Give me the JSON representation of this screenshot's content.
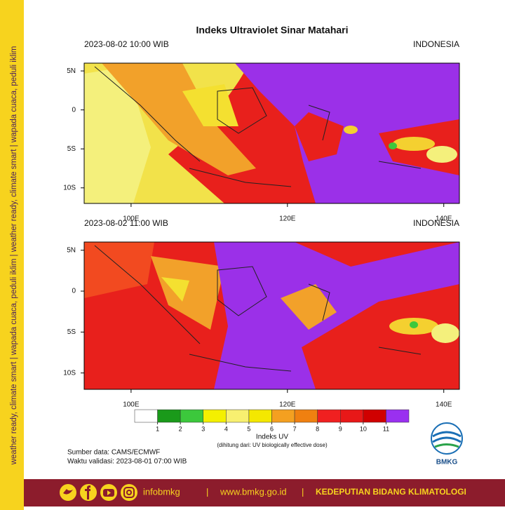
{
  "title": "Indeks Ultraviolet Sinar Matahari",
  "panels": [
    {
      "time": "2023-08-02  10:00 WIB",
      "region": "INDONESIA",
      "xlim": [
        94,
        142
      ],
      "ylim": [
        -12,
        6
      ],
      "xticks": [
        {
          "value": 100,
          "label": "100E"
        },
        {
          "value": 120,
          "label": "120E"
        },
        {
          "value": 140,
          "label": "140E"
        }
      ],
      "yticks": [
        {
          "value": 5,
          "label": "5N"
        },
        0,
        {
          "value": -5,
          "label": "5S"
        },
        {
          "value": -10,
          "label": "10S"
        }
      ]
    },
    {
      "time": "2023-08-02  11:00 WIB",
      "region": "INDONESIA",
      "xlim": [
        94,
        142
      ],
      "ylim": [
        -12,
        6
      ],
      "xticks": [
        {
          "value": 100,
          "label": "100E"
        },
        {
          "value": 120,
          "label": "120E"
        },
        {
          "value": 140,
          "label": "140E"
        }
      ],
      "yticks": [
        {
          "value": 5,
          "label": "5N"
        },
        0,
        {
          "value": -5,
          "label": "5S"
        },
        {
          "value": -10,
          "label": "10S"
        }
      ]
    }
  ],
  "colorbar": {
    "levels": [
      1,
      2,
      3,
      4,
      5,
      6,
      7,
      8,
      9,
      10,
      11
    ],
    "colors": [
      "#ffffff",
      "#1a9a1a",
      "#3cc83c",
      "#f4f000",
      "#f8f070",
      "#f4e800",
      "#f4a020",
      "#f08010",
      "#f02020",
      "#e81818",
      "#d00000",
      "#9a30f0"
    ],
    "title": "Indeks UV",
    "subtitle": "(dihitung dari: UV biologically effective dose)"
  },
  "source": "Sumber data: CAMS/ECMWF",
  "validity": "Waktu validasi: 2023-08-01 07:00 WIB",
  "logo": "BMKG",
  "side_text": "weather ready, climate smart  |  wapada cuaca, peduli iklim  |  weather ready, climate smart  |  wapada cuaca, peduli iklim",
  "footer": {
    "handle": "infobmkg",
    "separator": "|",
    "website": "www.bmkg.go.id",
    "unit": "KEDEPUTIAN BIDANG KLIMATOLOGI"
  }
}
